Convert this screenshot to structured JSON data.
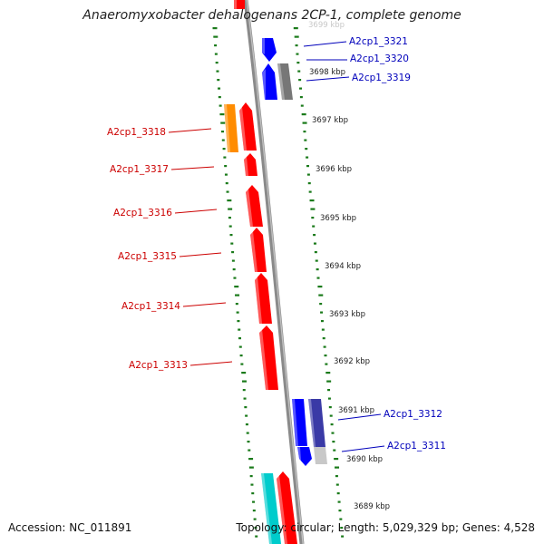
{
  "title": "Anaeromyxobacter dehalogenans 2CP-1, complete genome",
  "accession": "Accession: NC_011891",
  "topology": "Topology: circular; Length: 5,029,329 bp; Genes: 4,528",
  "colors": {
    "backbone": "#8a8a8a",
    "tick_dots": "#1a7a1a",
    "left_label": "#cc0000",
    "right_label": "#0000bb",
    "red": "#ff0000",
    "blue": "#0000ff",
    "gray": "#777777",
    "orange": "#ff8c00",
    "navy": "#3a3aa6",
    "light_gray": "#c8c8c8",
    "cyan": "#00cccc"
  },
  "scale_labels": [
    {
      "text": "3699 kbp",
      "faded": true
    },
    {
      "text": "3698 kbp"
    },
    {
      "text": "3697 kbp"
    },
    {
      "text": "3696 kbp"
    },
    {
      "text": "3695 kbp"
    },
    {
      "text": "3694 kbp"
    },
    {
      "text": "3693 kbp"
    },
    {
      "text": "3692 kbp"
    },
    {
      "text": "3691 kbp"
    },
    {
      "text": "3690 kbp"
    },
    {
      "text": "3689 kbp"
    }
  ],
  "genes_left": [
    {
      "name": "A2cp1_3318",
      "color": "orange"
    },
    {
      "name": "A2cp1_3317",
      "color": "red"
    },
    {
      "name": "A2cp1_3316",
      "color": "red"
    },
    {
      "name": "A2cp1_3315",
      "color": "red"
    },
    {
      "name": "A2cp1_3314",
      "color": "red"
    },
    {
      "name": "A2cp1_3313",
      "color": "red"
    }
  ],
  "genes_right": [
    {
      "name": "A2cp1_3321",
      "color": "blue"
    },
    {
      "name": "A2cp1_3320",
      "color": "blue"
    },
    {
      "name": "A2cp1_3319",
      "color": "gray"
    },
    {
      "name": "A2cp1_3312",
      "color": "navy"
    },
    {
      "name": "A2cp1_3311",
      "color": "blue"
    }
  ]
}
